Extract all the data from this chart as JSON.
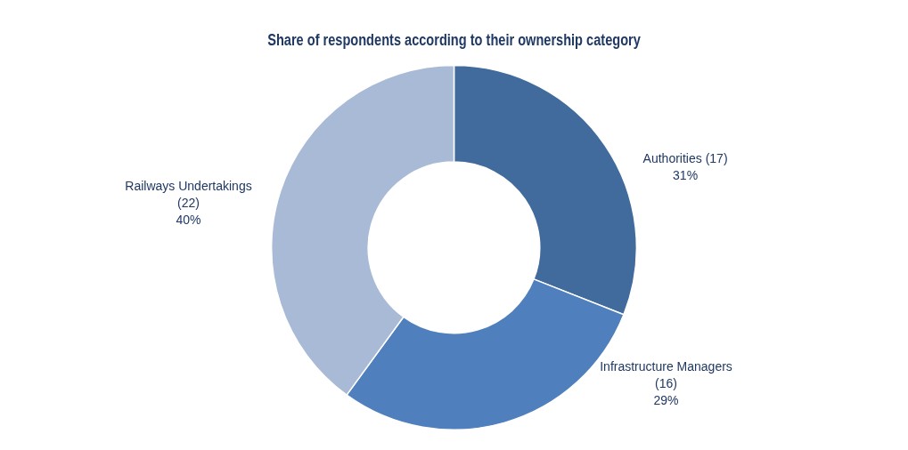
{
  "chart_data": {
    "type": "donut",
    "title": "Share of respondents according to their ownership category",
    "categories": [
      "Authorities (17)",
      "Infrastructure Managers (16)",
      "Railways Undertakings (22)"
    ],
    "values": [
      31,
      29,
      40
    ],
    "value_labels": [
      "31%",
      "29%",
      "40%"
    ],
    "colors": [
      "#416b9c",
      "#4f7fbd",
      "#a9bad6"
    ],
    "legend": false
  }
}
